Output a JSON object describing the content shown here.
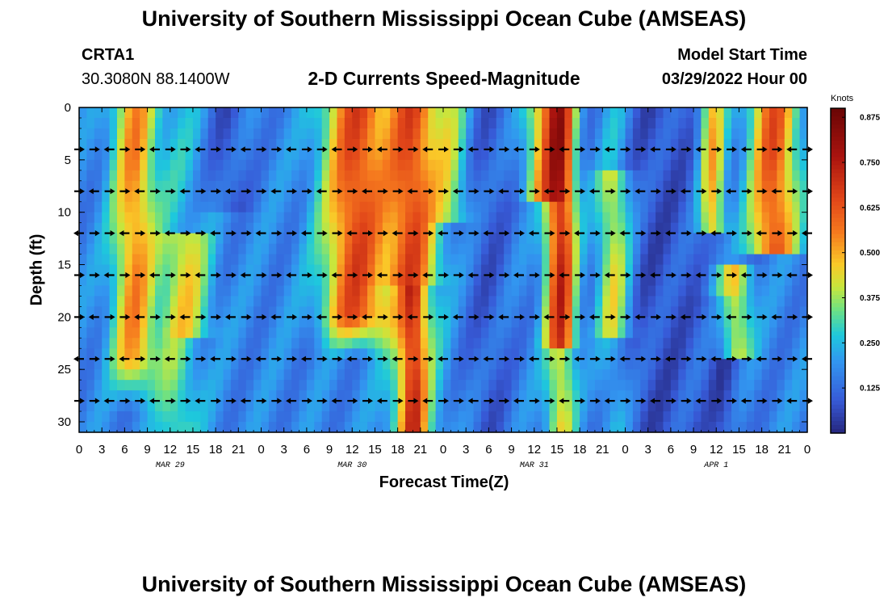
{
  "header": {
    "title": "University of Southern Mississippi Ocean Cube (AMSEAS)",
    "station": "CRTA1",
    "coordinates": "30.3080N  88.1400W",
    "subtitle": "2-D Currents Speed-Magnitude",
    "start_label": "Model Start Time",
    "start_value": "03/29/2022 Hour 00"
  },
  "footer": {
    "title": "University of Southern Mississippi Ocean Cube (AMSEAS)"
  },
  "chart_data": {
    "type": "heatmap",
    "title": "2-D Currents Speed-Magnitude",
    "xlabel": "Forecast Time(Z)",
    "ylabel": "Depth (ft)",
    "xlim": [
      0,
      96
    ],
    "ylim": [
      31,
      0
    ],
    "x_tick_values": [
      0,
      3,
      6,
      9,
      12,
      15,
      18,
      21,
      24,
      27,
      30,
      33,
      36,
      39,
      42,
      45,
      48,
      51,
      54,
      57,
      60,
      63,
      66,
      69,
      72,
      75,
      78,
      81,
      84,
      87,
      90,
      93,
      96
    ],
    "x_tick_labels": [
      "0",
      "3",
      "6",
      "9",
      "12",
      "15",
      "18",
      "21",
      "0",
      "3",
      "6",
      "9",
      "12",
      "15",
      "18",
      "21",
      "0",
      "3",
      "6",
      "9",
      "12",
      "15",
      "18",
      "21",
      "0",
      "3",
      "6",
      "9",
      "12",
      "15",
      "18",
      "21",
      "0"
    ],
    "y_ticks": [
      0,
      5,
      10,
      15,
      20,
      25,
      30
    ],
    "day_labels": [
      {
        "hour": 12,
        "label": "MAR 29"
      },
      {
        "hour": 36,
        "label": "MAR 30"
      },
      {
        "hour": 60,
        "label": "MAR 31"
      },
      {
        "hour": 84,
        "label": "APR 1"
      }
    ],
    "colorbar": {
      "label": "Knots",
      "min": 0.0,
      "max": 0.9,
      "ticks": [
        0.125,
        0.25,
        0.375,
        0.5,
        0.625,
        0.75,
        0.875
      ],
      "tick_labels": [
        "0.125",
        "0.250",
        "0.375",
        "0.500",
        "0.625",
        "0.750",
        "0.875"
      ]
    },
    "grid": false,
    "arrow_rows_depth_ft": [
      4,
      8,
      12,
      16,
      20,
      24,
      28
    ],
    "arrow_columns_hour_step": 2
  }
}
